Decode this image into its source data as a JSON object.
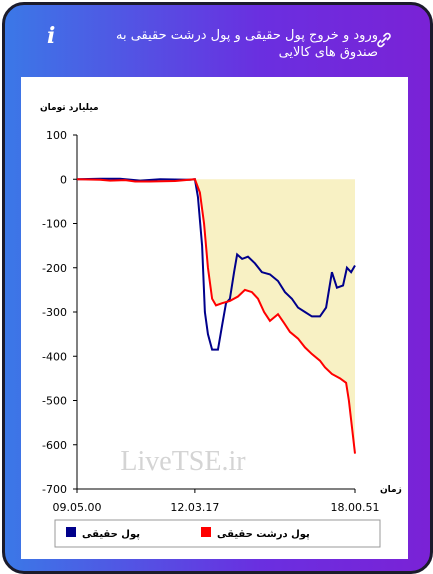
{
  "header": {
    "title": "ورود و خروج پول حقیقی و پول درشت حقیقی به صندوق های کالایی"
  },
  "chart_data": {
    "type": "line",
    "y_label": "میلیارد تومان",
    "x_label": "زمان",
    "watermark": "LiveTSE.ir",
    "ylim": [
      -700,
      100
    ],
    "yticks": [
      100,
      0,
      -100,
      -200,
      -300,
      -400,
      -500,
      -600,
      -700
    ],
    "xlim": [
      0,
      100
    ],
    "xticks": [
      {
        "value": 0,
        "label": "09.05.00"
      },
      {
        "value": 42.4,
        "label": "12.03.17"
      },
      {
        "value": 100,
        "label": "18.00.51"
      }
    ],
    "area_color": "#f8f1c4",
    "series": [
      {
        "name": "پول حقیقی",
        "color": "#00008b",
        "x": [
          0,
          8.3,
          15.5,
          22.7,
          29.9,
          40.6,
          42.4,
          43.5,
          45,
          46,
          47.1,
          48.6,
          50.7,
          52.2,
          53.6,
          55,
          56.5,
          57.6,
          59.4,
          61.5,
          64,
          66.5,
          69.4,
          72.3,
          74.8,
          77.3,
          79.5,
          82,
          84.5,
          87.4,
          89.6,
          91.7,
          93.5,
          95.7,
          97.1,
          98.6,
          100
        ],
        "values": [
          0,
          1,
          1,
          -3,
          0,
          -1,
          0,
          -40,
          -150,
          -300,
          -350,
          -385,
          -385,
          -330,
          -280,
          -270,
          -210,
          -170,
          -180,
          -175,
          -190,
          -210,
          -215,
          -230,
          -255,
          -270,
          -290,
          -300,
          -310,
          -310,
          -290,
          -210,
          -245,
          -240,
          -200,
          -210,
          -195
        ]
      },
      {
        "name": "پول درشت حقیقی",
        "color": "#ff0000",
        "area": true,
        "x": [
          0,
          8.3,
          11.9,
          17.3,
          20.9,
          26.3,
          35.3,
          42.4,
          44.2,
          45.7,
          47.1,
          48.6,
          50,
          52.2,
          55,
          57.9,
          60.4,
          62.9,
          65.1,
          67.3,
          69.4,
          72.3,
          74.5,
          76.6,
          79.5,
          82,
          84.5,
          87.4,
          89.2,
          91.7,
          94.6,
          96.8,
          97.8,
          98.9,
          100
        ],
        "values": [
          0,
          -1,
          -3,
          -2,
          -5,
          -5,
          -4,
          0,
          -30,
          -100,
          -200,
          -270,
          -285,
          -280,
          -275,
          -265,
          -250,
          -255,
          -270,
          -300,
          -320,
          -305,
          -325,
          -345,
          -360,
          -380,
          -395,
          -410,
          -425,
          -440,
          -450,
          -460,
          -500,
          -560,
          -620
        ]
      }
    ]
  }
}
